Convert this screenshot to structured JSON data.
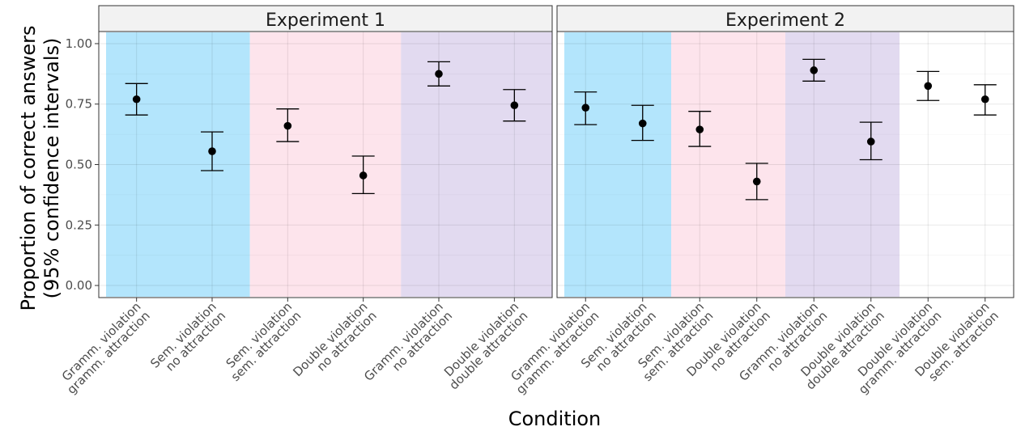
{
  "chart_data": {
    "type": "scatter",
    "ylabel_line1": "Proportion of correct answers",
    "ylabel_line2": "(95% confidence intervals)",
    "xlabel": "Condition",
    "ylim": [
      -0.05,
      1.05
    ],
    "yticks": [
      "0.00",
      "0.25",
      "0.50",
      "0.75",
      "1.00"
    ],
    "grid": true,
    "colors": {
      "gramm_band": "#b3e5fc",
      "sem_band": "#fde4ec",
      "double_band": "#e2daf0",
      "point": "#000000"
    },
    "panels": [
      {
        "title": "Experiment 1",
        "bands": [
          {
            "from": 0,
            "to": 2,
            "group": "gramm_band"
          },
          {
            "from": 2,
            "to": 4,
            "group": "sem_band"
          },
          {
            "from": 4,
            "to": 6,
            "group": "double_band"
          }
        ],
        "categories": [
          [
            "Gramm. violation",
            "gramm. attraction"
          ],
          [
            "Sem. violation",
            "no attraction"
          ],
          [
            "Sem. violation",
            "sem. attraction"
          ],
          [
            "Double violation",
            "no attraction"
          ],
          [
            "Gramm. violation",
            "no attraction"
          ],
          [
            "Double violation",
            "double attraction"
          ]
        ],
        "values": [
          0.77,
          0.555,
          0.66,
          0.455,
          0.875,
          0.745
        ],
        "lower": [
          0.705,
          0.475,
          0.595,
          0.38,
          0.825,
          0.68
        ],
        "upper": [
          0.835,
          0.635,
          0.73,
          0.535,
          0.925,
          0.81
        ]
      },
      {
        "title": "Experiment 2",
        "bands": [
          {
            "from": 0,
            "to": 2,
            "group": "gramm_band"
          },
          {
            "from": 2,
            "to": 4,
            "group": "sem_band"
          },
          {
            "from": 4,
            "to": 6,
            "group": "double_band"
          }
        ],
        "categories": [
          [
            "Gramm. violation",
            "gramm. attraction"
          ],
          [
            "Sem. violation",
            "no attraction"
          ],
          [
            "Sem. violation",
            "sem. attraction"
          ],
          [
            "Double violation",
            "no attraction"
          ],
          [
            "Gramm. violation",
            "no attraction"
          ],
          [
            "Double violation",
            "double attraction"
          ],
          [
            "Double violation",
            "gramm. attraction"
          ],
          [
            "Double violation",
            "sem. attraction"
          ]
        ],
        "values": [
          0.735,
          0.67,
          0.645,
          0.43,
          0.89,
          0.595,
          0.825,
          0.77
        ],
        "lower": [
          0.665,
          0.6,
          0.575,
          0.355,
          0.845,
          0.52,
          0.765,
          0.705
        ],
        "upper": [
          0.8,
          0.745,
          0.72,
          0.505,
          0.935,
          0.675,
          0.885,
          0.83
        ]
      }
    ]
  }
}
